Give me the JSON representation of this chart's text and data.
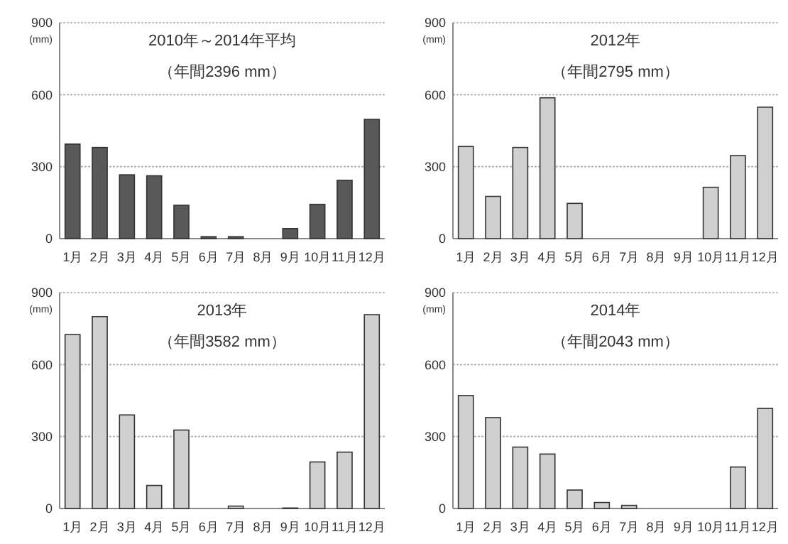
{
  "chart_data": [
    {
      "type": "bar",
      "title": "2010年～2014年平均",
      "subtitle": "（年間2396 mm）",
      "ylabel": "(mm)",
      "categories": [
        "1月",
        "2月",
        "3月",
        "4月",
        "5月",
        "6月",
        "7月",
        "8月",
        "9月",
        "10月",
        "11月",
        "12月"
      ],
      "values": [
        394,
        380,
        266,
        262,
        139,
        8,
        8,
        0,
        42,
        143,
        243,
        497
      ],
      "color": "#595959",
      "ylim": [
        0,
        900
      ],
      "yticks": [
        0,
        300,
        600,
        900
      ],
      "grid": "y"
    },
    {
      "type": "bar",
      "title": "2012年",
      "subtitle": "（年間2795 mm）",
      "ylabel": "(mm)",
      "categories": [
        "1月",
        "2月",
        "3月",
        "4月",
        "5月",
        "6月",
        "7月",
        "8月",
        "9月",
        "10月",
        "11月",
        "12月"
      ],
      "values": [
        384,
        176,
        380,
        587,
        147,
        0,
        0,
        0,
        0,
        214,
        346,
        548
      ],
      "color": "#d0d0d0",
      "ylim": [
        0,
        900
      ],
      "yticks": [
        0,
        300,
        600,
        900
      ],
      "grid": "y"
    },
    {
      "type": "bar",
      "title": "2013年",
      "subtitle": "（年間3582 mm）",
      "ylabel": "(mm)",
      "categories": [
        "1月",
        "2月",
        "3月",
        "4月",
        "5月",
        "6月",
        "7月",
        "8月",
        "9月",
        "10月",
        "11月",
        "12月"
      ],
      "values": [
        725,
        800,
        390,
        96,
        327,
        0,
        10,
        0,
        2,
        194,
        235,
        808
      ],
      "color": "#d0d0d0",
      "ylim": [
        0,
        900
      ],
      "yticks": [
        0,
        300,
        600,
        900
      ],
      "grid": "y"
    },
    {
      "type": "bar",
      "title": "2014年",
      "subtitle": "（年間2043 mm）",
      "ylabel": "(mm)",
      "categories": [
        "1月",
        "2月",
        "3月",
        "4月",
        "5月",
        "6月",
        "7月",
        "8月",
        "9月",
        "10月",
        "11月",
        "12月"
      ],
      "values": [
        471,
        379,
        256,
        227,
        77,
        25,
        13,
        0,
        0,
        0,
        173,
        417
      ],
      "color": "#d0d0d0",
      "ylim": [
        0,
        900
      ],
      "yticks": [
        0,
        300,
        600,
        900
      ],
      "grid": "y"
    }
  ]
}
